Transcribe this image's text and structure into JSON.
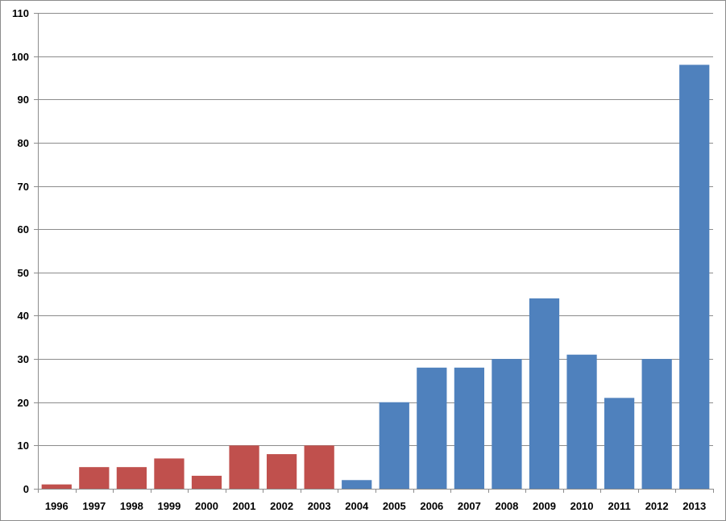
{
  "chart_data": {
    "type": "bar",
    "title": "",
    "xlabel": "",
    "ylabel": "",
    "ylim": [
      0,
      110
    ],
    "yticks": [
      0,
      10,
      20,
      30,
      40,
      50,
      60,
      70,
      80,
      90,
      100,
      110
    ],
    "grid": true,
    "legend": "none",
    "categories": [
      "1996",
      "1997",
      "1998",
      "1999",
      "2000",
      "2001",
      "2002",
      "2003",
      "2004",
      "2005",
      "2006",
      "2007",
      "2008",
      "2009",
      "2010",
      "2011",
      "2012",
      "2013"
    ],
    "values": [
      1,
      5,
      5,
      7,
      3,
      10,
      8,
      10,
      2,
      20,
      28,
      28,
      30,
      44,
      31,
      21,
      30,
      98
    ],
    "bar_colors": [
      "#c0504d",
      "#c0504d",
      "#c0504d",
      "#c0504d",
      "#c0504d",
      "#c0504d",
      "#c0504d",
      "#c0504d",
      "#4f81bd",
      "#4f81bd",
      "#4f81bd",
      "#4f81bd",
      "#4f81bd",
      "#4f81bd",
      "#4f81bd",
      "#4f81bd",
      "#4f81bd",
      "#4f81bd"
    ],
    "colors": {
      "gridline": "#8c8c8c",
      "axis": "#8c8c8c",
      "text": "#000000"
    }
  }
}
